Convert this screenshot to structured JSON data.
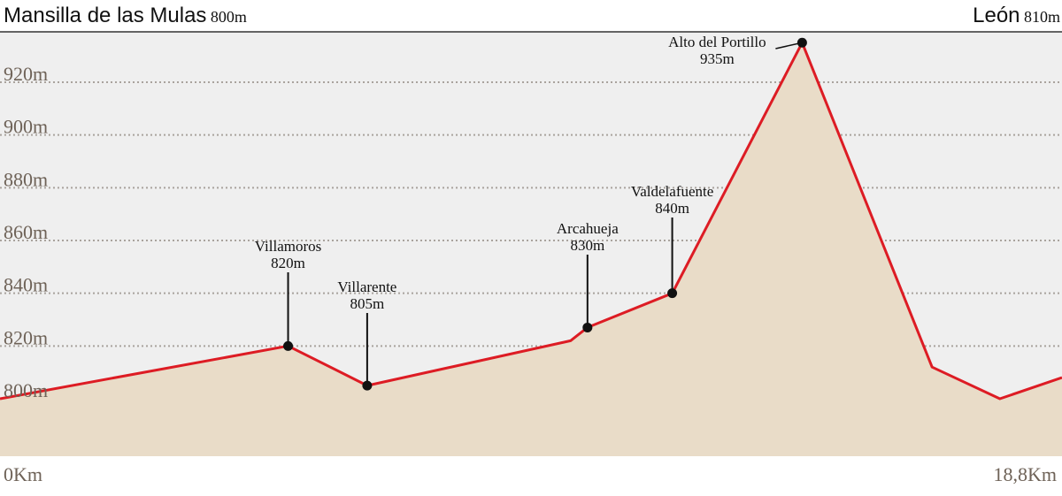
{
  "header": {
    "start_name": "Mansilla de las Mulas",
    "start_alt": "800m",
    "end_name": "León",
    "end_alt": "810m"
  },
  "colors": {
    "fill": "#e9dcc8",
    "plot_bg": "#efefef",
    "line": "#dd1c24",
    "grid": "#a9a39d",
    "marker": "#111111"
  },
  "chart_data": {
    "type": "area",
    "title": "",
    "xlabel": "",
    "ylabel": "",
    "x_unit": "Km",
    "y_unit": "m",
    "xlim": [
      0,
      18.8
    ],
    "ylim": [
      770,
      945
    ],
    "x_tick_labels": [
      {
        "x": 0,
        "label": "0Km"
      },
      {
        "x": 18.8,
        "label": "18,8Km"
      }
    ],
    "y_ticks": [
      800,
      820,
      840,
      860,
      880,
      900,
      920
    ],
    "y_tick_labels": [
      "800m",
      "820m",
      "840m",
      "860m",
      "880m",
      "900m",
      "920m"
    ],
    "grid": true,
    "series": [
      {
        "x": [
          0,
          5.1,
          6.5,
          10.1,
          10.4,
          11.9,
          14.2,
          16.5,
          17.7,
          18.8
        ],
        "y": [
          800,
          820,
          805,
          822,
          827,
          840,
          935,
          812,
          800,
          808
        ]
      }
    ],
    "points": [
      {
        "name": "Villamoros",
        "alt": "820m",
        "x": 5.1,
        "y": 820
      },
      {
        "name": "Villarente",
        "alt": "805m",
        "x": 6.5,
        "y": 805
      },
      {
        "name": "Arcahueja",
        "alt": "830m",
        "x": 10.4,
        "y": 827
      },
      {
        "name": "Valdelafuente",
        "alt": "840m",
        "x": 11.9,
        "y": 840
      },
      {
        "name": "Alto del Portillo",
        "alt": "935m",
        "x": 14.2,
        "y": 935
      }
    ]
  }
}
